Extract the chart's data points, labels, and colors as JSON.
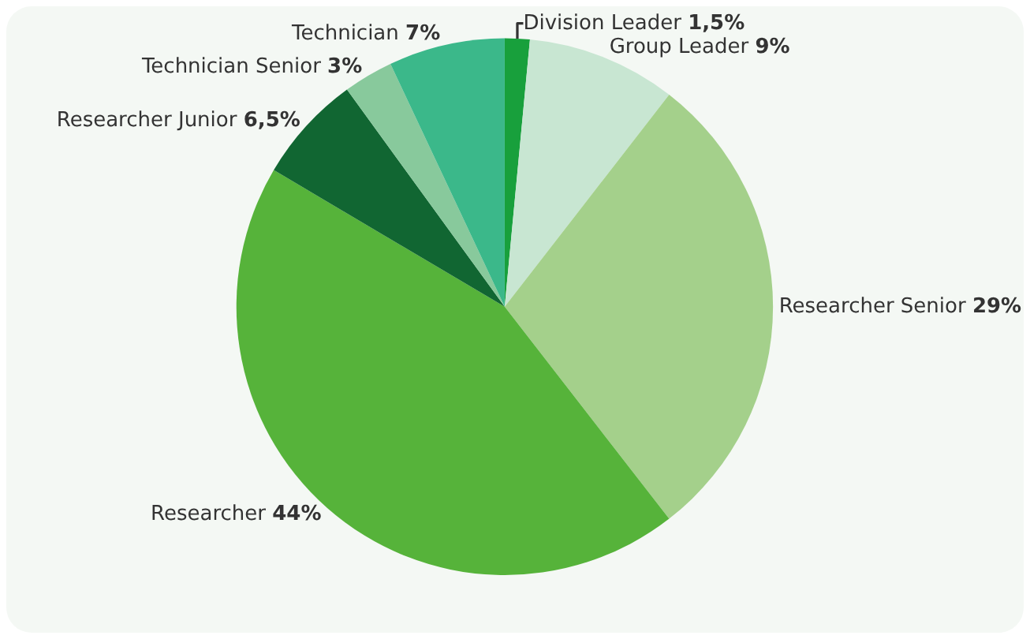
{
  "chart_data": {
    "type": "pie",
    "categories": [
      "Division Leader",
      "Group Leader",
      "Researcher Senior",
      "Researcher",
      "Researcher Junior",
      "Technician Senior",
      "Technician"
    ],
    "values": [
      1.5,
      9,
      29,
      44,
      6.5,
      3,
      7
    ],
    "value_labels": [
      "1,5%",
      "9%",
      "29%",
      "44%",
      "6,5%",
      "3%",
      "7%"
    ],
    "colors": [
      "#18a03c",
      "#c8e6d2",
      "#a4d08b",
      "#56b33a",
      "#116632",
      "#88c99c",
      "#3bb88a"
    ],
    "legend": false
  }
}
